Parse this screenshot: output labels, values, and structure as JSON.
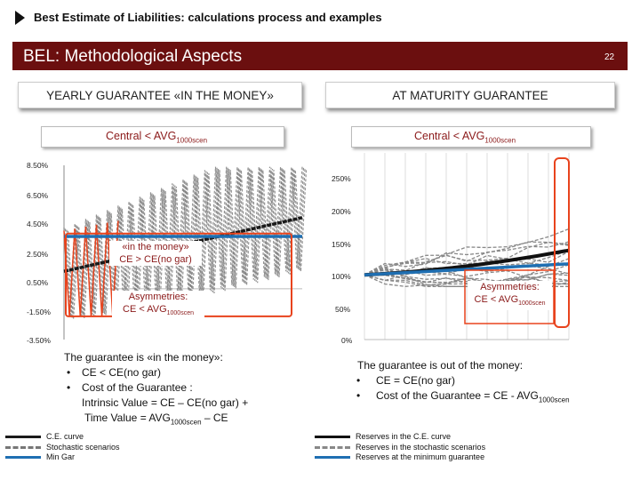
{
  "header": {
    "title": "Best Estimate of Liabilities: calculations process and examples",
    "banner": "BEL: Methodological Aspects",
    "page_number": "22"
  },
  "left": {
    "heading": "YEARLY GUARANTEE «IN THE MONEY»",
    "condition": {
      "text": "Central < AVG",
      "sub": "1000scen"
    },
    "annotation_money": {
      "line1": "«in the money»",
      "line2": "CE > CE(no gar)"
    },
    "annotation_asym": {
      "line1": "Asymmetries:",
      "line2_text": "CE < AVG",
      "line2_sub": "1000scen"
    },
    "explanation": {
      "intro": "The guarantee is «in the money»:",
      "bullet1": "CE < CE(no gar)",
      "bullet2": "Cost of the Guarantee :",
      "line3": "Intrinsic Value = CE – CE(no gar) +",
      "line4_text": "Time Value = AVG",
      "line4_sub": "1000scen",
      "line4_tail": " – CE"
    },
    "legend": [
      "C.E. curve",
      "Stochastic scenarios",
      "Min Gar"
    ]
  },
  "right": {
    "heading": "AT MATURITY GUARANTEE",
    "condition": {
      "text": "Central < AVG",
      "sub": "1000scen"
    },
    "annotation_asym": {
      "line1": "Asymmetries:",
      "line2_text": "CE < AVG",
      "line2_sub": "1000scen"
    },
    "explanation": {
      "intro": "The guarantee is out of the money:",
      "bullet1": "CE = CE(no gar)",
      "bullet2_text": "Cost of the Guarantee = CE - AVG",
      "bullet2_sub": "1000scen"
    },
    "legend": [
      "Reserves in the C.E. curve",
      "Reserves in the stochastic scenarios",
      "Reserves at the minimum guarantee"
    ]
  },
  "chart_data": [
    {
      "type": "line",
      "title": "Yearly guarantee in the money",
      "ylim": [
        -3.5,
        8.5
      ],
      "y_ticks": [
        "8.50%",
        "6.50%",
        "4.50%",
        "2.50%",
        "0.50%",
        "-1.50%",
        "-3.50%"
      ],
      "series": [
        {
          "name": "C.E. curve",
          "start": 1.2,
          "end": 4.9
        },
        {
          "name": "Stochastic scenarios",
          "oscillating": true,
          "upper_end": 8.4,
          "lower_end": 1.5
        },
        {
          "name": "Min Gar",
          "value": 3.6
        }
      ],
      "colors": {
        "ce": "#1a1a1a",
        "scen": "#777777",
        "mingar": "#1f6fb2",
        "highlight": "#e8431d"
      }
    },
    {
      "type": "line",
      "title": "At maturity guarantee",
      "ylim": [
        0,
        250
      ],
      "y_ticks": [
        "250%",
        "200%",
        "150%",
        "100%",
        "50%",
        "0%"
      ],
      "series": [
        {
          "name": "Reserves in the C.E. curve",
          "start": 100,
          "end": 138
        },
        {
          "name": "Reserves in the stochastic scenarios",
          "start": 100,
          "max_end": 248,
          "min_end": 82
        },
        {
          "name": "Reserves at the minimum guarantee",
          "start": 100,
          "end": 117
        }
      ],
      "colors": {
        "ce": "#111111",
        "scen": "#888888",
        "mingar": "#1f6fb2",
        "highlight": "#e8431d"
      }
    }
  ]
}
